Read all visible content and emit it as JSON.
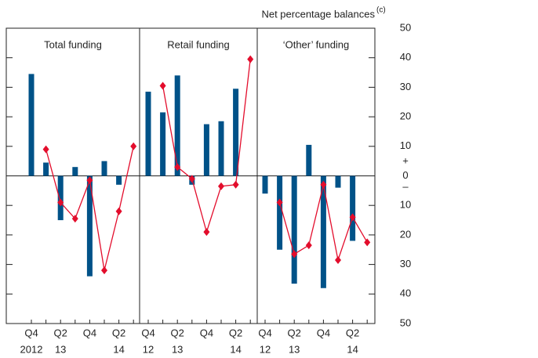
{
  "chart_data": {
    "type": "bar",
    "y_title": "Net percentage balances",
    "y_title_note": "(c)",
    "sign_labels": [
      "+",
      "–"
    ],
    "ylim": [
      -50,
      50
    ],
    "yticks": [
      {
        "value": -50,
        "label": "50"
      },
      {
        "value": -40,
        "label": "40"
      },
      {
        "value": -30,
        "label": "30"
      },
      {
        "value": -20,
        "label": "20"
      },
      {
        "value": -10,
        "label": "10"
      },
      0,
      10,
      20,
      30,
      40,
      50
    ],
    "panels": [
      {
        "title": "Total funding",
        "categories": [
          "Q4",
          null,
          "Q2",
          null,
          "Q4",
          null,
          "Q2",
          null
        ],
        "years": [
          "2012",
          null,
          "13",
          null,
          null,
          null,
          "14",
          null
        ],
        "series": [
          {
            "type": "bar",
            "color": "#005288",
            "values": [
              34.5,
              4.5,
              -15,
              3,
              -34,
              5,
              -3,
              null
            ]
          },
          {
            "type": "line",
            "color": "#e30d2c",
            "values": [
              null,
              9,
              -9,
              -14.5,
              -1.5,
              -32,
              -12,
              10
            ]
          }
        ]
      },
      {
        "title": "Retail funding",
        "categories": [
          "Q4",
          null,
          "Q2",
          null,
          "Q4",
          null,
          "Q2",
          null
        ],
        "years": [
          "12",
          null,
          "13",
          null,
          null,
          null,
          "14",
          null
        ],
        "series": [
          {
            "type": "bar",
            "color": "#005288",
            "values": [
              28.5,
              21.5,
              34,
              -3,
              17.5,
              18.5,
              29.5,
              null
            ]
          },
          {
            "type": "line",
            "color": "#e30d2c",
            "values": [
              null,
              30.5,
              3,
              -1,
              -19,
              -3.5,
              -3,
              39.5
            ]
          }
        ]
      },
      {
        "title": "‘Other’ funding",
        "categories": [
          "Q4",
          null,
          "Q2",
          null,
          "Q4",
          null,
          "Q2",
          null
        ],
        "years": [
          "12",
          null,
          "13",
          null,
          null,
          null,
          "14",
          null
        ],
        "series": [
          {
            "type": "bar",
            "color": "#005288",
            "values": [
              -6,
              -25,
              -36.5,
              10.5,
              -38,
              -4,
              -22,
              null
            ]
          },
          {
            "type": "line",
            "color": "#e30d2c",
            "values": [
              null,
              -9,
              -26.5,
              -23.5,
              -3,
              -28.5,
              -14,
              -22.5
            ]
          }
        ]
      }
    ]
  }
}
